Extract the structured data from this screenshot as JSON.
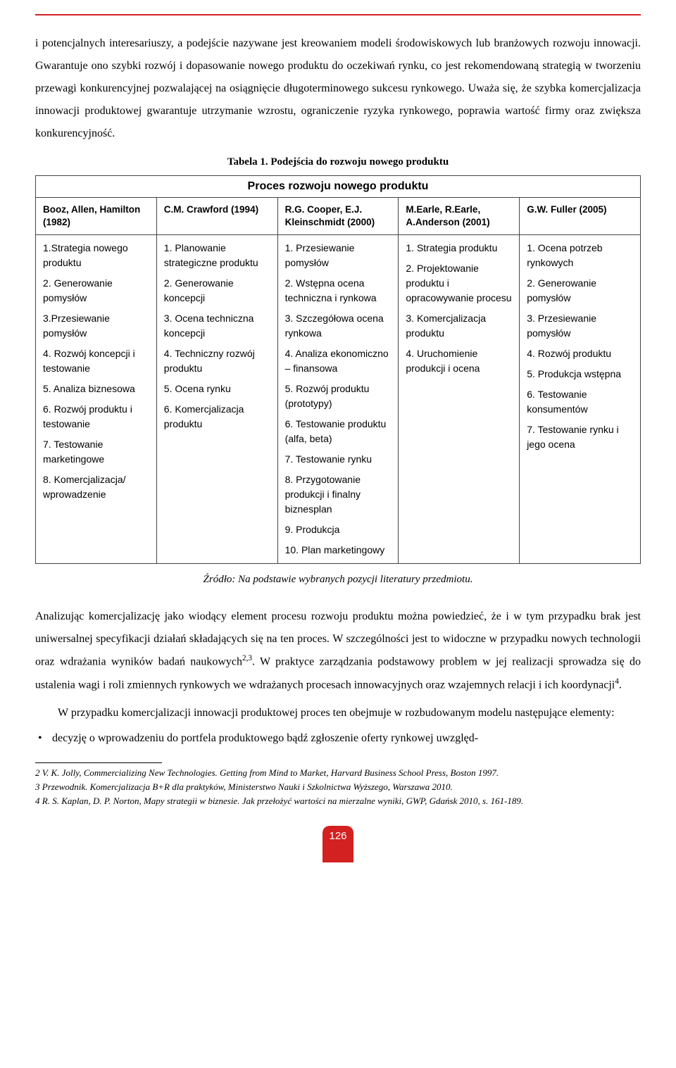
{
  "colors": {
    "accent": "#d32020",
    "text": "#000000",
    "border": "#444444",
    "background": "#ffffff"
  },
  "para1": "i potencjalnych interesariuszy, a podejście nazywane jest kreowaniem modeli środowiskowych lub branżowych rozwoju innowacji. Gwarantuje ono szybki rozwój i dopasowanie nowego produktu do oczekiwań rynku, co jest rekomendowaną strategią w tworzeniu przewagi konkurencyjnej pozwalającej na osiągnięcie długoterminowego sukcesu rynkowego. Uważa się, że szybka komercjalizacja innowacji produktowej gwarantuje utrzymanie wzrostu, ograniczenie ryzyka rynkowego, poprawia wartość firmy oraz zwiększa konkurencyjność.",
  "table": {
    "caption": "Tabela 1. Podejścia do rozwoju nowego produktu",
    "title": "Proces rozwoju nowego produktu",
    "columns": [
      "Booz, Allen, Hamilton (1982)",
      "C.M. Crawford (1994)",
      "R.G. Cooper, E.J. Kleinschmidt (2000)",
      "M.Earle, R.Earle, A.Anderson (2001)",
      "G.W. Fuller (2005)"
    ],
    "cells": [
      [
        "1.Strategia nowego produktu",
        "2. Generowanie pomysłów",
        "3.Przesiewanie pomysłów",
        "4. Rozwój koncepcji i testowanie",
        "5. Analiza biznesowa",
        "6. Rozwój produktu i testowanie",
        "7. Testowanie marketingowe",
        "8. Komercjalizacja/ wprowadzenie"
      ],
      [
        "1. Planowanie strategiczne produktu",
        "2. Generowanie koncepcji",
        "3. Ocena techniczna koncepcji",
        "4. Techniczny rozwój produktu",
        "5. Ocena rynku",
        "6. Komercjalizacja produktu"
      ],
      [
        "1. Przesiewanie pomysłów",
        "2. Wstępna ocena techniczna i rynkowa",
        "3. Szczegółowa ocena rynkowa",
        "4. Analiza ekonomiczno – finansowa",
        "5. Rozwój produktu (prototypy)",
        "6. Testowanie produktu (alfa, beta)",
        "7. Testowanie rynku",
        "8. Przygotowanie produkcji i finalny biznesplan",
        "9. Produkcja",
        "10. Plan marketingowy"
      ],
      [
        "1. Strategia  produktu",
        "2. Projektowanie produktu i opracowywanie procesu",
        "3. Komercjalizacja produktu",
        "4. Uruchomienie produkcji i ocena"
      ],
      [
        "1. Ocena potrzeb rynkowych",
        "2. Generowanie pomysłów",
        "3. Przesiewanie pomysłów",
        "4. Rozwój produktu",
        "5. Produkcja wstępna",
        "6. Testowanie konsumentów",
        "7. Testowanie rynku i jego ocena"
      ]
    ],
    "source": "Źródło: Na podstawie wybranych pozycji literatury przedmiotu."
  },
  "para2_html": "Analizując komercjalizację jako wiodący element procesu rozwoju produktu można powiedzieć, że i w tym przypadku brak jest uniwersalnej specyfikacji działań składających się na ten proces. W szczególności jest to widoczne w przypadku nowych technologii oraz wdrażania wyników badań naukowych<sup>2,3</sup>. W praktyce zarządzania podstawowy problem w jej realizacji sprowadza się do ustalenia wagi i roli zmiennych rynkowych we wdrażanych procesach innowacyjnych oraz wzajemnych relacji i ich koordynacji<sup>4</sup>.",
  "para3": "W przypadku komercjalizacji innowacji produktowej proces ten obejmuje w rozbudowanym modelu następujące elementy:",
  "bullet1": "decyzję o wprowadzeniu do portfela produktowego bądź zgłoszenie oferty rynkowej uwzględ-",
  "footnotes": [
    "2 V. K. Jolly, Commercializing New Technologies. Getting from Mind to Market, Harvard Business School Press, Boston 1997.",
    "3 Przewodnik. Komercjalizacja B+R dla praktyków, Ministerstwo Nauki i Szkolnictwa Wyższego, Warszawa 2010.",
    "4 R. S. Kaplan, D. P. Norton, Mapy strategii w biznesie. Jak przełożyć wartości na mierzalne wyniki, GWP, Gdańsk 2010, s. 161-189."
  ],
  "page_number": "126"
}
